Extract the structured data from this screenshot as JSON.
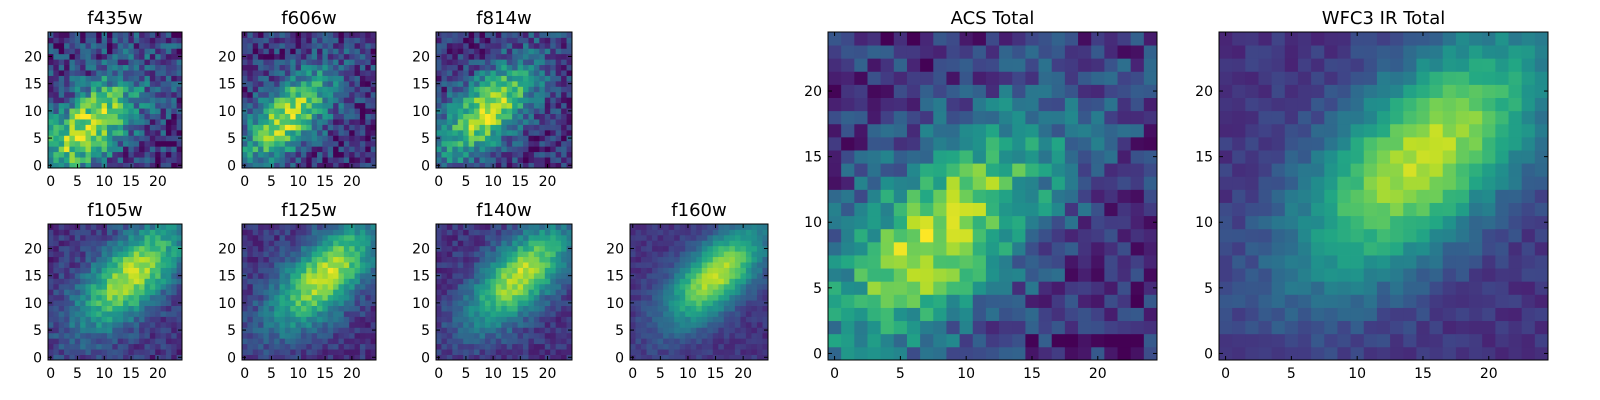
{
  "figure": {
    "background": "#ffffff",
    "colormap": "viridis"
  },
  "chart_data": [
    {
      "type": "heatmap",
      "title": "f435w",
      "xlim": [
        0,
        25
      ],
      "ylim": [
        0,
        25
      ],
      "xticks": [
        "0",
        "5",
        "10",
        "15",
        "20"
      ],
      "yticks": [
        "0",
        "5",
        "10",
        "15",
        "20"
      ],
      "peak": [
        7,
        7
      ],
      "sigma": 5.5,
      "noise": 0.38,
      "seed": 11
    },
    {
      "type": "heatmap",
      "title": "f606w",
      "xlim": [
        0,
        25
      ],
      "ylim": [
        0,
        25
      ],
      "xticks": [
        "0",
        "5",
        "10",
        "15",
        "20"
      ],
      "yticks": [
        "0",
        "5",
        "10",
        "15",
        "20"
      ],
      "peak": [
        8,
        9
      ],
      "sigma": 4.8,
      "noise": 0.32,
      "seed": 23
    },
    {
      "type": "heatmap",
      "title": "f814w",
      "xlim": [
        0,
        25
      ],
      "ylim": [
        0,
        25
      ],
      "xticks": [
        "0",
        "5",
        "10",
        "15",
        "20"
      ],
      "yticks": [
        "0",
        "5",
        "10",
        "15",
        "20"
      ],
      "peak": [
        9,
        10
      ],
      "sigma": 5.0,
      "noise": 0.3,
      "seed": 37
    },
    {
      "type": "heatmap",
      "title": "f105w",
      "xlim": [
        0,
        25
      ],
      "ylim": [
        0,
        25
      ],
      "xticks": [
        "0",
        "5",
        "10",
        "15",
        "20"
      ],
      "yticks": [
        "0",
        "5",
        "10",
        "15",
        "20"
      ],
      "peak": [
        15,
        15
      ],
      "sigma": 5.5,
      "noise": 0.18,
      "seed": 41
    },
    {
      "type": "heatmap",
      "title": "f125w",
      "xlim": [
        0,
        25
      ],
      "ylim": [
        0,
        25
      ],
      "xticks": [
        "0",
        "5",
        "10",
        "15",
        "20"
      ],
      "yticks": [
        "0",
        "5",
        "10",
        "15",
        "20"
      ],
      "peak": [
        15,
        15
      ],
      "sigma": 5.5,
      "noise": 0.17,
      "seed": 53
    },
    {
      "type": "heatmap",
      "title": "f140w",
      "xlim": [
        0,
        25
      ],
      "ylim": [
        0,
        25
      ],
      "xticks": [
        "0",
        "5",
        "10",
        "15",
        "20"
      ],
      "yticks": [
        "0",
        "5",
        "10",
        "15",
        "20"
      ],
      "peak": [
        15,
        15
      ],
      "sigma": 5.2,
      "noise": 0.15,
      "seed": 67
    },
    {
      "type": "heatmap",
      "title": "f160w",
      "xlim": [
        0,
        25
      ],
      "ylim": [
        0,
        25
      ],
      "xticks": [
        "0",
        "5",
        "10",
        "15",
        "20"
      ],
      "yticks": [
        "0",
        "5",
        "10",
        "15",
        "20"
      ],
      "peak": [
        15,
        15
      ],
      "sigma": 5.0,
      "noise": 0.1,
      "seed": 71
    },
    {
      "type": "heatmap",
      "title": "ACS Total",
      "xlim": [
        0,
        25
      ],
      "ylim": [
        0,
        25
      ],
      "xticks": [
        "0",
        "5",
        "10",
        "15",
        "20"
      ],
      "yticks": [
        "0",
        "5",
        "10",
        "15",
        "20"
      ],
      "peak": [
        8,
        9
      ],
      "sigma": 5.2,
      "noise": 0.28,
      "seed": 83
    },
    {
      "type": "heatmap",
      "title": "WFC3 IR Total",
      "xlim": [
        0,
        25
      ],
      "ylim": [
        0,
        25
      ],
      "xticks": [
        "0",
        "5",
        "10",
        "15",
        "20"
      ],
      "yticks": [
        "0",
        "5",
        "10",
        "15",
        "20"
      ],
      "peak": [
        15,
        15
      ],
      "sigma": 5.5,
      "noise": 0.1,
      "seed": 97
    }
  ]
}
